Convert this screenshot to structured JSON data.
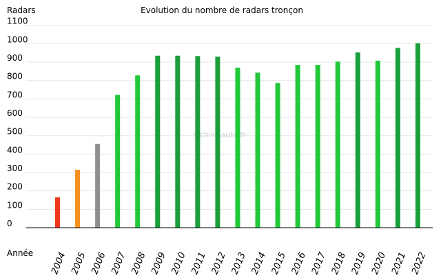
{
  "chart_data": {
    "type": "bar",
    "title": "Evolution du nombre de radars tronçon",
    "ylabel": "Radars",
    "xlabel": "Année",
    "watermark": "Fichier-auto.fr",
    "ylim": [
      0,
      1100
    ],
    "yticks": [
      0,
      100,
      200,
      300,
      400,
      500,
      600,
      700,
      800,
      900,
      1000,
      1100
    ],
    "grid": true,
    "categories": [
      "2004",
      "2005",
      "2006",
      "2007",
      "2008",
      "2009",
      "2010",
      "2011",
      "2012",
      "2013",
      "2014",
      "2015",
      "2016",
      "2017",
      "2018",
      "2019",
      "2020",
      "2021",
      "2022"
    ],
    "values": [
      165,
      315,
      455,
      722,
      828,
      935,
      935,
      933,
      930,
      870,
      843,
      787,
      885,
      885,
      903,
      953,
      908,
      977,
      1003
    ],
    "colors": [
      "#ee3a1a",
      "#f7901e",
      "#8f8f8f",
      "#22c83a",
      "#22c83a",
      "#1a9f3a",
      "#1a9f3a",
      "#1a9f3a",
      "#1a9f3a",
      "#22c83a",
      "#22c83a",
      "#22c83a",
      "#22c83a",
      "#22c83a",
      "#22c83a",
      "#1a9f3a",
      "#22c83a",
      "#1a9f3a",
      "#1a9f3a"
    ]
  }
}
